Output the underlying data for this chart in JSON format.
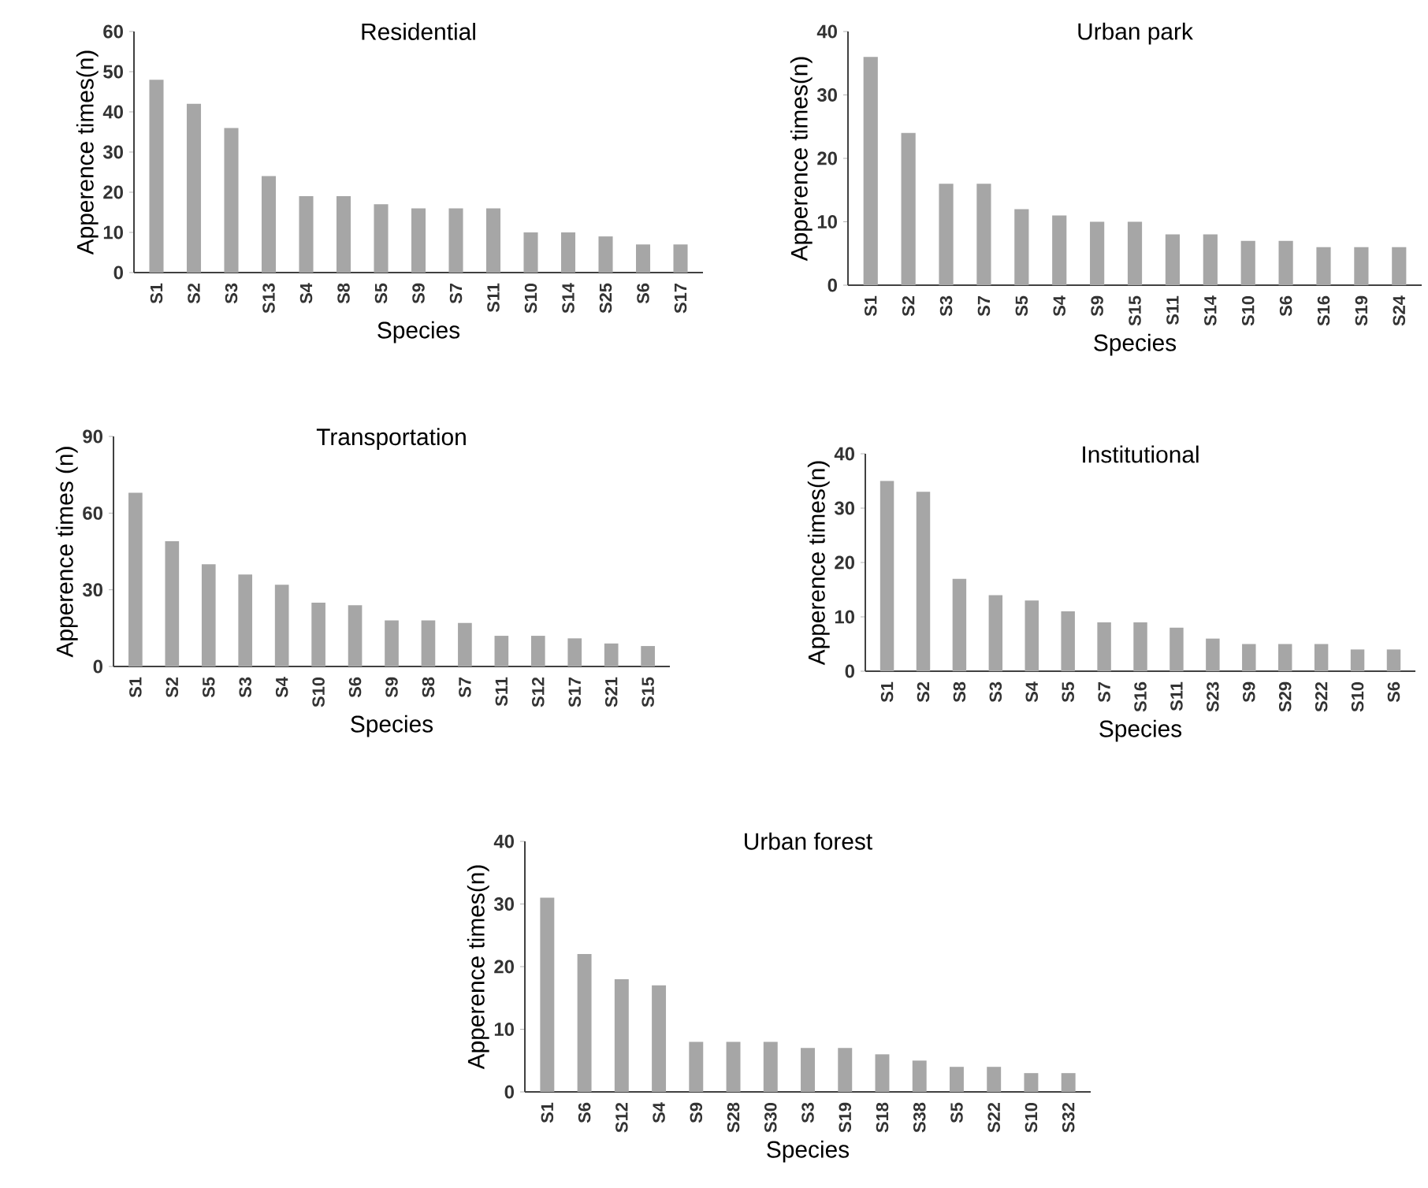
{
  "chart_data": [
    {
      "type": "bar",
      "title": "Residential",
      "xlabel": "Species",
      "ylabel": "Apperence times(n)",
      "categories": [
        "S1",
        "S2",
        "S3",
        "S13",
        "S4",
        "S8",
        "S5",
        "S9",
        "S7",
        "S11",
        "S10",
        "S14",
        "S25",
        "S6",
        "S17"
      ],
      "values": [
        48,
        42,
        36,
        24,
        19,
        19,
        17,
        16,
        16,
        16,
        10,
        10,
        9,
        7,
        7
      ],
      "color": "#a6a6a6",
      "ylim": [
        0,
        60
      ],
      "yticks": [
        0,
        10,
        20,
        30,
        40,
        50,
        60
      ]
    },
    {
      "type": "bar",
      "title": "Urban park",
      "xlabel": "Species",
      "ylabel": "Apperence times(n)",
      "categories": [
        "S1",
        "S2",
        "S3",
        "S7",
        "S5",
        "S4",
        "S9",
        "S15",
        "S11",
        "S14",
        "S10",
        "S6",
        "S16",
        "S19",
        "S24"
      ],
      "values": [
        36,
        24,
        16,
        16,
        12,
        11,
        10,
        10,
        8,
        8,
        7,
        7,
        6,
        6,
        6
      ],
      "color": "#a6a6a6",
      "ylim": [
        0,
        40
      ],
      "yticks": [
        0,
        10,
        20,
        30,
        40
      ]
    },
    {
      "type": "bar",
      "title": "Transportation",
      "xlabel": "Species",
      "ylabel": "Apperence times (n)",
      "categories": [
        "S1",
        "S2",
        "S5",
        "S3",
        "S4",
        "S10",
        "S6",
        "S9",
        "S8",
        "S7",
        "S11",
        "S12",
        "S17",
        "S21",
        "S15"
      ],
      "values": [
        68,
        49,
        40,
        36,
        32,
        25,
        24,
        18,
        18,
        17,
        12,
        12,
        11,
        9,
        8
      ],
      "color": "#a6a6a6",
      "ylim": [
        0,
        90
      ],
      "yticks": [
        0,
        30,
        60,
        90
      ]
    },
    {
      "type": "bar",
      "title": "Institutional",
      "xlabel": "Species",
      "ylabel": "Apperence times(n)",
      "categories": [
        "S1",
        "S2",
        "S8",
        "S3",
        "S4",
        "S5",
        "S7",
        "S16",
        "S11",
        "S23",
        "S9",
        "S29",
        "S22",
        "S10",
        "S6"
      ],
      "values": [
        35,
        33,
        17,
        14,
        13,
        11,
        9,
        9,
        8,
        6,
        5,
        5,
        5,
        4,
        4
      ],
      "color": "#a6a6a6",
      "ylim": [
        0,
        40
      ],
      "yticks": [
        0,
        10,
        20,
        30,
        40
      ]
    },
    {
      "type": "bar",
      "title": "Urban forest",
      "xlabel": "Species",
      "ylabel": "Apperence times(n)",
      "categories": [
        "S1",
        "S6",
        "S12",
        "S4",
        "S9",
        "S28",
        "S30",
        "S3",
        "S19",
        "S18",
        "S38",
        "S5",
        "S22",
        "S10",
        "S32"
      ],
      "values": [
        31,
        22,
        18,
        17,
        8,
        8,
        8,
        7,
        7,
        6,
        5,
        4,
        4,
        3,
        3
      ],
      "color": "#a6a6a6",
      "ylim": [
        0,
        40
      ],
      "yticks": [
        0,
        10,
        20,
        30,
        40
      ]
    }
  ]
}
